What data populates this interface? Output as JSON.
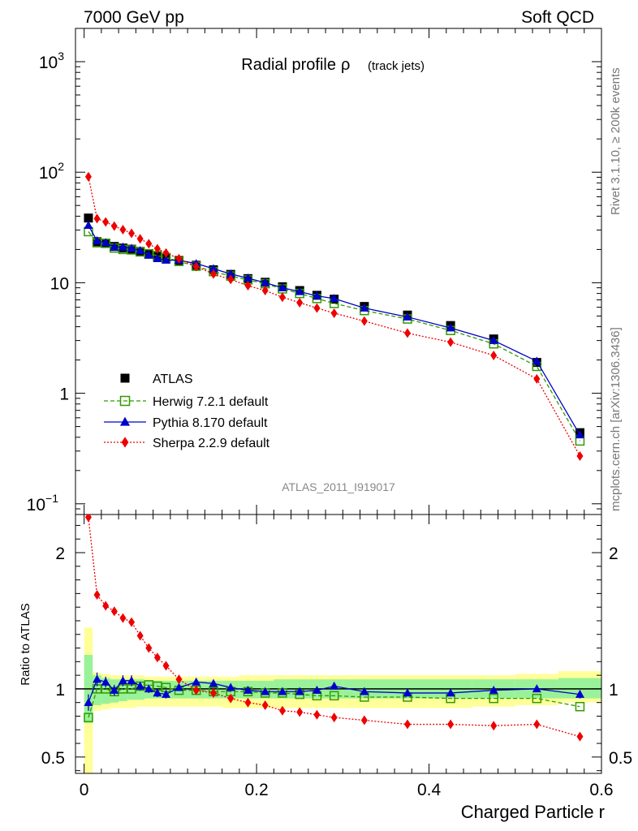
{
  "header": {
    "left": "7000 GeV pp",
    "right": "Soft QCD"
  },
  "side_labels": {
    "rivet": "Rivet 3.1.10, ≥ 200k events",
    "mcplots": "mcplots.cern.ch [arXiv:1306.3436]"
  },
  "analysis_id": "ATLAS_2011_I919017",
  "colors": {
    "atlas": "#000000",
    "herwig": "#339900",
    "pythia": "#0000cc",
    "sherpa": "#ee0000",
    "band_inner": "#99f299",
    "band_outer": "#ffff99"
  },
  "chart_data": [
    {
      "type": "line",
      "title": "Radial profile",
      "title_symbol": "ρ",
      "title_suffix": "(track jets)",
      "xlabel": "Charged Particle r",
      "ylabel": "",
      "yscale": "log",
      "xlim": [
        -0.01,
        0.6
      ],
      "ylim": [
        0.08,
        2000
      ],
      "y_ticks": [
        {
          "value": 1000,
          "base": "10",
          "exp": "3"
        },
        {
          "value": 100,
          "base": "10",
          "exp": "2"
        },
        {
          "value": 10,
          "base": "10",
          "exp": ""
        },
        {
          "value": 1,
          "base": "1",
          "exp": ""
        },
        {
          "value": 0.1,
          "base": "10",
          "exp": "−1"
        }
      ],
      "x": [
        0.005,
        0.015,
        0.025,
        0.035,
        0.045,
        0.055,
        0.065,
        0.075,
        0.085,
        0.095,
        0.11,
        0.13,
        0.15,
        0.17,
        0.19,
        0.21,
        0.23,
        0.25,
        0.27,
        0.29,
        0.325,
        0.375,
        0.425,
        0.475,
        0.525,
        0.575
      ],
      "series": [
        {
          "name": "ATLAS",
          "marker": "square-filled",
          "values": [
            38.5,
            23.5,
            22.8,
            21.3,
            20.6,
            20.1,
            19.2,
            18.1,
            17.3,
            16.7,
            15.9,
            14.4,
            13.1,
            11.9,
            10.9,
            10.1,
            9.2,
            8.5,
            7.7,
            7.1,
            6.1,
            5.1,
            4.1,
            3.1,
            1.9,
            0.44
          ]
        },
        {
          "name": "Herwig 7.2.1 default",
          "marker": "square-open",
          "style": "dashed",
          "values": [
            29.0,
            23.0,
            22.7,
            20.6,
            20.0,
            19.8,
            19.0,
            18.3,
            17.6,
            16.9,
            15.6,
            14.1,
            12.6,
            11.5,
            10.6,
            9.8,
            8.8,
            8.0,
            7.2,
            6.5,
            5.6,
            4.7,
            3.7,
            2.8,
            1.75,
            0.37
          ]
        },
        {
          "name": "Pythia 8.170 default",
          "marker": "triangle-filled",
          "style": "solid",
          "values": [
            33.0,
            24.0,
            23.0,
            21.0,
            21.0,
            20.5,
            19.5,
            17.8,
            16.5,
            16.0,
            16.0,
            14.9,
            13.4,
            12.0,
            11.0,
            10.0,
            9.0,
            8.3,
            7.6,
            7.2,
            5.9,
            4.9,
            3.9,
            3.0,
            1.95,
            0.42
          ]
        },
        {
          "name": "Sherpa 2.2.9 default",
          "marker": "diamond-filled",
          "style": "dotted",
          "values": [
            91.0,
            38.0,
            35.5,
            32.5,
            30.2,
            28.0,
            25.0,
            22.5,
            20.3,
            18.6,
            16.5,
            14.0,
            12.0,
            10.7,
            9.4,
            8.5,
            7.4,
            6.6,
            5.9,
            5.3,
            4.5,
            3.5,
            2.9,
            2.2,
            1.35,
            0.27
          ]
        }
      ],
      "legend_position": "left"
    },
    {
      "type": "line",
      "title": "Ratio",
      "xlabel": "Charged Particle r",
      "ylabel": "Ratio to ATLAS",
      "xlim": [
        -0.01,
        0.6
      ],
      "ylim": [
        0.38,
        2.28
      ],
      "x_ticks": [
        {
          "value": 0,
          "label": "0"
        },
        {
          "value": 0.2,
          "label": "0.2"
        },
        {
          "value": 0.4,
          "label": "0.4"
        },
        {
          "value": 0.6,
          "label": "0.6"
        }
      ],
      "y_ticks": [
        {
          "value": 0.5,
          "label": "0.5"
        },
        {
          "value": 1,
          "label": "1"
        },
        {
          "value": 2,
          "label": "2"
        }
      ],
      "bin_edges": [
        0.0,
        0.01,
        0.02,
        0.03,
        0.04,
        0.05,
        0.06,
        0.07,
        0.08,
        0.09,
        0.1,
        0.12,
        0.14,
        0.16,
        0.18,
        0.2,
        0.22,
        0.24,
        0.26,
        0.28,
        0.3,
        0.35,
        0.4,
        0.45,
        0.5,
        0.55,
        0.6
      ],
      "band_inner_low": [
        0.75,
        0.88,
        0.89,
        0.9,
        0.91,
        0.92,
        0.92,
        0.93,
        0.93,
        0.93,
        0.93,
        0.93,
        0.93,
        0.93,
        0.93,
        0.93,
        0.93,
        0.93,
        0.93,
        0.93,
        0.93,
        0.93,
        0.93,
        0.93,
        0.93,
        0.93
      ],
      "band_inner_high": [
        1.25,
        1.1,
        1.08,
        1.07,
        1.07,
        1.07,
        1.07,
        1.06,
        1.06,
        1.06,
        1.06,
        1.06,
        1.06,
        1.06,
        1.06,
        1.06,
        1.07,
        1.07,
        1.07,
        1.07,
        1.07,
        1.07,
        1.07,
        1.07,
        1.07,
        1.08
      ],
      "band_outer_low": [
        0.37,
        0.84,
        0.85,
        0.86,
        0.86,
        0.86,
        0.87,
        0.87,
        0.87,
        0.87,
        0.87,
        0.87,
        0.87,
        0.86,
        0.86,
        0.86,
        0.86,
        0.86,
        0.86,
        0.86,
        0.86,
        0.86,
        0.86,
        0.87,
        0.88,
        0.9
      ],
      "band_outer_high": [
        1.45,
        1.12,
        1.11,
        1.1,
        1.1,
        1.1,
        1.1,
        1.09,
        1.09,
        1.09,
        1.09,
        1.09,
        1.09,
        1.09,
        1.1,
        1.1,
        1.1,
        1.1,
        1.1,
        1.1,
        1.1,
        1.1,
        1.1,
        1.1,
        1.11,
        1.13
      ],
      "x": [
        0.005,
        0.015,
        0.025,
        0.035,
        0.045,
        0.055,
        0.065,
        0.075,
        0.085,
        0.095,
        0.11,
        0.13,
        0.15,
        0.17,
        0.19,
        0.21,
        0.23,
        0.25,
        0.27,
        0.29,
        0.325,
        0.375,
        0.425,
        0.475,
        0.525,
        0.575
      ],
      "series": [
        {
          "name": "Herwig 7.2.1 default",
          "marker": "square-open",
          "style": "dashed",
          "values": [
            0.79,
            1.0,
            1.0,
            0.98,
            1.0,
            1.0,
            1.02,
            1.03,
            1.02,
            1.01,
            0.99,
            0.99,
            0.98,
            0.98,
            0.98,
            0.97,
            0.97,
            0.96,
            0.95,
            0.95,
            0.94,
            0.94,
            0.93,
            0.93,
            0.93,
            0.87
          ]
        },
        {
          "name": "Pythia 8.170 default",
          "marker": "triangle-filled",
          "style": "solid",
          "values": [
            0.9,
            1.07,
            1.05,
            0.99,
            1.06,
            1.06,
            1.02,
            1.0,
            0.97,
            0.96,
            1.01,
            1.05,
            1.04,
            1.01,
            0.99,
            0.98,
            0.98,
            0.98,
            0.99,
            1.02,
            0.98,
            0.97,
            0.97,
            0.99,
            1.0,
            0.96
          ],
          "errors": [
            0.06,
            0.05,
            0.04,
            0.04,
            0.04,
            0.04,
            0.03,
            0.03,
            0.03,
            0.03,
            0.02,
            0.02,
            0.02,
            0.02,
            0.02,
            0.02,
            0.02,
            0.02,
            0.02,
            0.02,
            0.02,
            0.02,
            0.02,
            0.02,
            0.02,
            0.03
          ]
        },
        {
          "name": "Sherpa 2.2.9 default",
          "marker": "diamond-filled",
          "style": "dotted",
          "values": [
            2.26,
            1.69,
            1.61,
            1.57,
            1.52,
            1.49,
            1.39,
            1.3,
            1.23,
            1.17,
            1.07,
            0.99,
            0.97,
            0.93,
            0.9,
            0.88,
            0.84,
            0.83,
            0.81,
            0.79,
            0.77,
            0.74,
            0.74,
            0.73,
            0.74,
            0.65
          ]
        }
      ]
    }
  ]
}
